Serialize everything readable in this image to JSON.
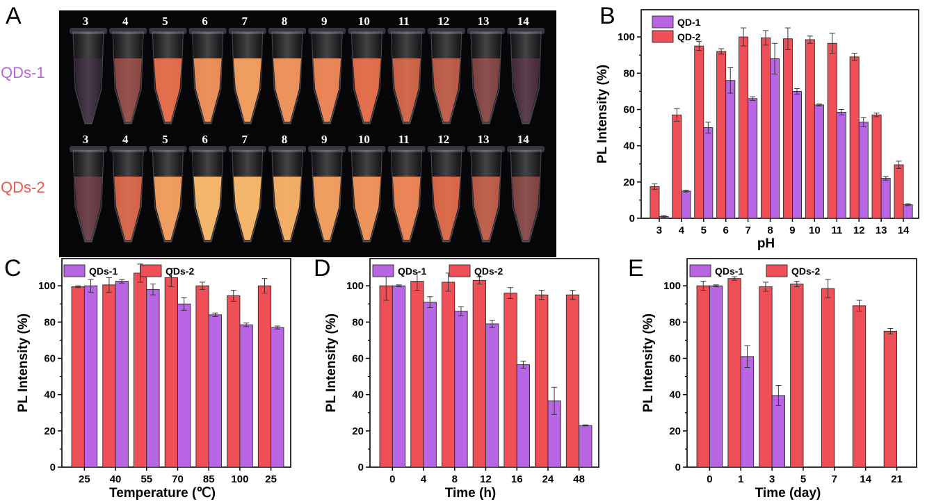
{
  "colors": {
    "qd1": "#b866e3",
    "qd2": "#ef4f57",
    "photo_bg": "#060608",
    "row1_label": "#b967df",
    "row2_label": "#f25552"
  },
  "panel_a": {
    "letter": "A",
    "row1_label": "QDs-1",
    "row2_label": "QDs-2",
    "row1_tubes": [
      {
        "num": "3",
        "glow": 0.08
      },
      {
        "num": "4",
        "glow": 0.55
      },
      {
        "num": "5",
        "glow": 0.85
      },
      {
        "num": "6",
        "glow": 0.92
      },
      {
        "num": "7",
        "glow": 0.95
      },
      {
        "num": "8",
        "glow": 0.93
      },
      {
        "num": "9",
        "glow": 0.9
      },
      {
        "num": "10",
        "glow": 0.85
      },
      {
        "num": "11",
        "glow": 0.78
      },
      {
        "num": "12",
        "glow": 0.72
      },
      {
        "num": "13",
        "glow": 0.5
      },
      {
        "num": "14",
        "glow": 0.22
      }
    ],
    "row2_tubes": [
      {
        "num": "3",
        "glow": 0.35
      },
      {
        "num": "4",
        "glow": 0.8
      },
      {
        "num": "5",
        "glow": 0.95
      },
      {
        "num": "6",
        "glow": 1.0
      },
      {
        "num": "7",
        "glow": 1.0
      },
      {
        "num": "8",
        "glow": 0.98
      },
      {
        "num": "9",
        "glow": 0.95
      },
      {
        "num": "10",
        "glow": 0.93
      },
      {
        "num": "11",
        "glow": 0.9
      },
      {
        "num": "12",
        "glow": 0.82
      },
      {
        "num": "13",
        "glow": 0.72
      },
      {
        "num": "14",
        "glow": 0.5
      }
    ]
  },
  "chart_data": [
    {
      "panel": "B",
      "type": "bar",
      "xlabel": "pH",
      "ylabel": "PL Intensity (%)",
      "ylim": [
        0,
        115
      ],
      "yticks": [
        "0",
        "20",
        "40",
        "60",
        "80",
        "100"
      ],
      "categories": [
        "3",
        "4",
        "5",
        "6",
        "7",
        "8",
        "9",
        "10",
        "11",
        "12",
        "13",
        "14"
      ],
      "legend_position": "top-left",
      "series": [
        {
          "name": "QD-1",
          "color_key": "qd1",
          "values": [
            1,
            15,
            50,
            76,
            66,
            88,
            70,
            62.5,
            58.5,
            53,
            22,
            7.5
          ],
          "errors": [
            0.5,
            0.5,
            3,
            7,
            1,
            8.5,
            1.5,
            0.5,
            1.5,
            2.5,
            1,
            0.5
          ]
        },
        {
          "name": "QD-2",
          "color_key": "qd2",
          "values": [
            17.5,
            57,
            95,
            92,
            100,
            99.5,
            99,
            98.5,
            96.5,
            89,
            57,
            29.5
          ],
          "errors": [
            1.5,
            3.5,
            2.5,
            1.5,
            5,
            4,
            6,
            2,
            5.5,
            2,
            1,
            2
          ]
        }
      ]
    },
    {
      "panel": "C",
      "type": "bar",
      "xlabel": "Temperature (℃)",
      "ylabel": "PL Intensity (%)",
      "ylim": [
        0,
        115
      ],
      "yticks": [
        "0",
        "20",
        "40",
        "60",
        "80",
        "100"
      ],
      "categories": [
        "25",
        "40",
        "55",
        "70",
        "85",
        "100",
        "25"
      ],
      "legend_position": "top",
      "series": [
        {
          "name": "QDs-1",
          "color_key": "qd1",
          "values": [
            100,
            102.5,
            98,
            90,
            84,
            78.5,
            77
          ],
          "errors": [
            3.5,
            1,
            3,
            3.5,
            1,
            1,
            0.8
          ]
        },
        {
          "name": "QDs-2",
          "color_key": "qd2",
          "values": [
            99.5,
            100.5,
            107,
            104.5,
            100,
            94.5,
            100
          ],
          "errors": [
            0.5,
            4,
            5,
            5,
            2,
            3,
            4
          ]
        }
      ]
    },
    {
      "panel": "D",
      "type": "bar",
      "xlabel": "Time (h)",
      "ylabel": "PL Intensity (%)",
      "ylim": [
        0,
        115
      ],
      "yticks": [
        "0",
        "20",
        "40",
        "60",
        "80",
        "100"
      ],
      "categories": [
        "0",
        "4",
        "8",
        "12",
        "16",
        "24",
        "48"
      ],
      "legend_position": "top",
      "series": [
        {
          "name": "QDs-1",
          "color_key": "qd1",
          "values": [
            100,
            91,
            86,
            79,
            56.5,
            36.5,
            23
          ],
          "errors": [
            0.5,
            3,
            2.5,
            2,
            2,
            7.5,
            0.3
          ]
        },
        {
          "name": "QDs-2",
          "color_key": "qd2",
          "values": [
            100,
            102.5,
            102,
            103,
            96,
            95,
            95
          ],
          "errors": [
            8,
            5,
            5,
            2,
            3,
            2.5,
            2.5
          ]
        }
      ]
    },
    {
      "panel": "E",
      "type": "bar",
      "xlabel": "Time (day)",
      "ylabel": "PL Intensity (%)",
      "ylim": [
        0,
        115
      ],
      "yticks": [
        "0",
        "20",
        "40",
        "60",
        "80",
        "100"
      ],
      "categories": [
        "0",
        "1",
        "3",
        "5",
        "7",
        "14",
        "21"
      ],
      "legend_position": "top",
      "series": [
        {
          "name": "QDs-1",
          "color_key": "qd1",
          "values": [
            100,
            61,
            39.5,
            null,
            null,
            null,
            null
          ],
          "errors": [
            0.5,
            6,
            5.5,
            null,
            null,
            null,
            null
          ]
        },
        {
          "name": "QDs-2",
          "color_key": "qd2",
          "values": [
            100,
            104,
            99.5,
            101,
            98.5,
            89,
            75
          ],
          "errors": [
            2.5,
            1,
            2.5,
            1.5,
            5,
            3,
            1.5
          ]
        }
      ]
    }
  ]
}
